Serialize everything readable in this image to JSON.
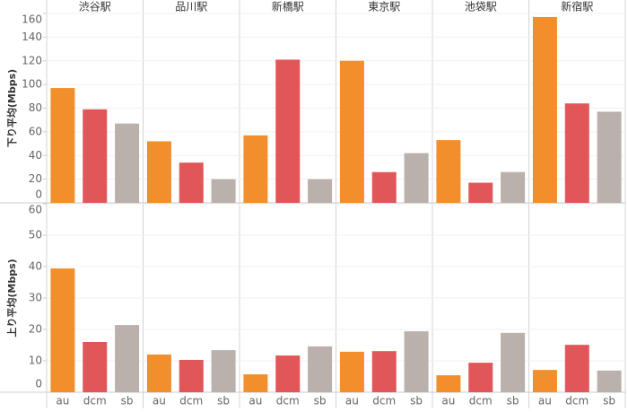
{
  "chart_data": {
    "type": "bar",
    "facets": [
      "渋谷駅",
      "品川駅",
      "新橋駅",
      "東京駅",
      "池袋駅",
      "新宿駅"
    ],
    "categories": [
      "au",
      "dcm",
      "sb"
    ],
    "colors": [
      "#f28e2b",
      "#e15759",
      "#bab0ac"
    ],
    "rows": [
      {
        "ylabel": "下り平均(Mbps)",
        "ylim": [
          0,
          160
        ],
        "yticks": [
          0,
          20,
          40,
          60,
          80,
          100,
          120,
          140,
          160
        ],
        "values": [
          [
            97,
            79,
            67
          ],
          [
            52,
            34,
            20
          ],
          [
            57,
            121,
            20
          ],
          [
            120,
            26,
            42
          ],
          [
            53,
            17,
            26
          ],
          [
            157,
            84,
            77
          ]
        ]
      },
      {
        "ylabel": "上り平均(Mbps)",
        "ylim": [
          0,
          60
        ],
        "yticks": [
          0,
          10,
          20,
          30,
          40,
          50,
          60
        ],
        "values": [
          [
            39.4,
            16,
            21.4
          ],
          [
            12,
            10.3,
            13.4
          ],
          [
            5.7,
            11.7,
            14.6
          ],
          [
            12.9,
            13.1,
            19.4
          ],
          [
            5.4,
            9.4,
            18.9
          ],
          [
            7.1,
            15.1,
            6.9
          ]
        ]
      }
    ]
  }
}
